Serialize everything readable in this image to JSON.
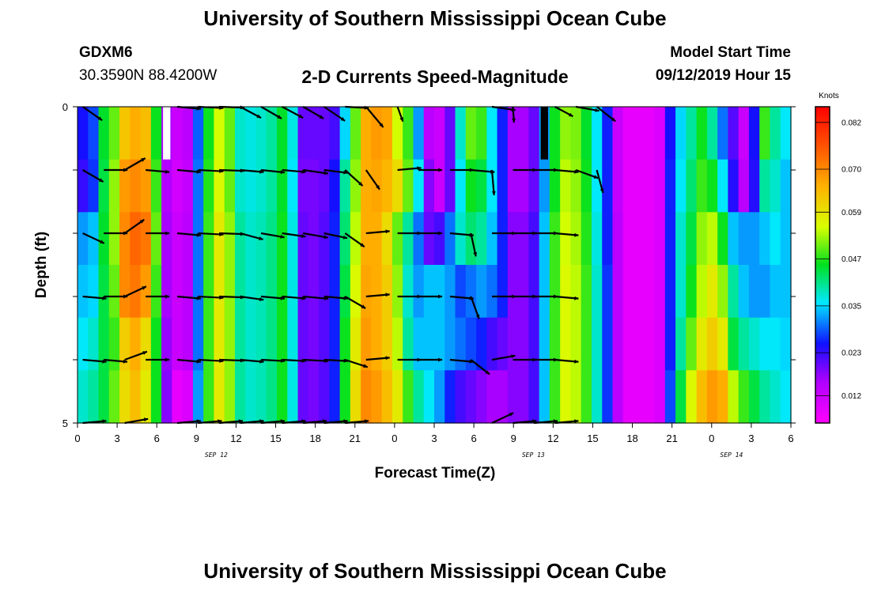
{
  "header": {
    "title": "University of Southern Mississippi Ocean Cube",
    "station_id": "GDXM6",
    "station_coords": "30.3590N 88.4200W",
    "chart_title": "2-D Currents Speed-Magnitude",
    "model_start_label": "Model Start Time",
    "model_start_value": "09/12/2019 Hour 15"
  },
  "footer": {
    "title": "University of Southern Mississippi Ocean Cube"
  },
  "chart_data": {
    "type": "heatmap",
    "title": "2-D Currents Speed-Magnitude",
    "xlabel": "Forecast Time(Z)",
    "ylabel": "Depth (ft)",
    "x_tick_labels": [
      "0",
      "3",
      "6",
      "9",
      "12",
      "15",
      "18",
      "21",
      "0",
      "3",
      "6",
      "9",
      "12",
      "15",
      "18",
      "21",
      "0",
      "3",
      "6"
    ],
    "y_tick_labels": [
      "0",
      "5"
    ],
    "ylim": [
      0,
      5
    ],
    "date_labels": [
      {
        "label": "SEP 12",
        "tick_index": 3.5
      },
      {
        "label": "SEP 13",
        "tick_index": 11.5
      },
      {
        "label": "SEP 14",
        "tick_index": 16.5
      }
    ],
    "colorbar": {
      "unit": "Knots",
      "labels": [
        "0.082",
        "0.070",
        "0.059",
        "0.047",
        "0.035",
        "0.023",
        "0.012"
      ],
      "range": [
        0.005,
        0.086
      ]
    },
    "columns_per_hour": 0.6667,
    "speed_bands": [
      [
        0.025,
        0.028,
        0.045,
        0.05,
        0.063,
        0.066,
        0.064,
        0.046,
        0.016,
        0.012,
        0.014,
        0.029,
        0.046,
        0.055,
        0.05,
        0.038,
        0.037,
        0.038,
        0.04,
        0.045,
        0.037,
        0.02,
        0.02,
        0.02,
        0.022,
        0.035,
        0.05,
        0.066,
        0.068,
        0.067,
        0.055,
        0.048,
        0.032,
        0.014,
        0.012,
        0.02,
        0.038,
        0.05,
        0.048,
        0.036,
        0.026,
        0.016,
        0.016,
        0.02,
        0.032,
        0.046,
        0.052,
        0.051,
        0.045,
        0.036,
        0.026,
        0.012,
        0.008,
        0.008,
        0.008,
        0.01,
        0.025,
        0.035,
        0.04,
        0.046,
        0.04,
        0.03,
        0.021,
        0.012,
        0.025,
        0.048,
        0.04,
        0.036
      ],
      [
        0.023,
        0.027,
        0.044,
        0.052,
        0.068,
        0.07,
        0.068,
        0.048,
        0.015,
        0.011,
        0.013,
        0.03,
        0.047,
        0.056,
        0.05,
        0.038,
        0.037,
        0.038,
        0.04,
        0.045,
        0.036,
        0.019,
        0.019,
        0.02,
        0.025,
        0.04,
        0.052,
        0.066,
        0.067,
        0.065,
        0.06,
        0.05,
        0.036,
        0.018,
        0.012,
        0.02,
        0.036,
        0.046,
        0.044,
        0.036,
        0.026,
        0.016,
        0.016,
        0.02,
        0.032,
        0.046,
        0.054,
        0.052,
        0.046,
        0.036,
        0.026,
        0.013,
        0.008,
        0.008,
        0.008,
        0.01,
        0.026,
        0.036,
        0.042,
        0.048,
        0.046,
        0.036,
        0.024,
        0.014,
        0.024,
        0.04,
        0.038,
        0.034
      ],
      [
        0.032,
        0.034,
        0.045,
        0.052,
        0.07,
        0.074,
        0.072,
        0.05,
        0.016,
        0.012,
        0.014,
        0.03,
        0.048,
        0.058,
        0.052,
        0.04,
        0.038,
        0.039,
        0.041,
        0.046,
        0.037,
        0.02,
        0.019,
        0.021,
        0.026,
        0.042,
        0.054,
        0.066,
        0.066,
        0.06,
        0.05,
        0.04,
        0.03,
        0.02,
        0.022,
        0.03,
        0.038,
        0.042,
        0.04,
        0.034,
        0.026,
        0.018,
        0.018,
        0.022,
        0.034,
        0.048,
        0.055,
        0.053,
        0.047,
        0.037,
        0.026,
        0.014,
        0.008,
        0.008,
        0.008,
        0.01,
        0.026,
        0.038,
        0.044,
        0.052,
        0.054,
        0.046,
        0.034,
        0.032,
        0.032,
        0.034,
        0.036,
        0.034
      ],
      [
        0.034,
        0.035,
        0.044,
        0.05,
        0.07,
        0.072,
        0.068,
        0.048,
        0.016,
        0.012,
        0.014,
        0.03,
        0.048,
        0.058,
        0.052,
        0.04,
        0.038,
        0.039,
        0.041,
        0.046,
        0.037,
        0.02,
        0.019,
        0.021,
        0.026,
        0.044,
        0.056,
        0.067,
        0.066,
        0.062,
        0.052,
        0.038,
        0.032,
        0.034,
        0.034,
        0.032,
        0.028,
        0.03,
        0.032,
        0.03,
        0.026,
        0.018,
        0.018,
        0.022,
        0.034,
        0.048,
        0.056,
        0.054,
        0.048,
        0.038,
        0.027,
        0.014,
        0.008,
        0.008,
        0.008,
        0.01,
        0.026,
        0.038,
        0.046,
        0.054,
        0.058,
        0.052,
        0.04,
        0.034,
        0.032,
        0.032,
        0.034,
        0.034
      ],
      [
        0.036,
        0.038,
        0.044,
        0.048,
        0.062,
        0.066,
        0.06,
        0.046,
        0.017,
        0.012,
        0.014,
        0.03,
        0.048,
        0.058,
        0.052,
        0.04,
        0.038,
        0.039,
        0.041,
        0.046,
        0.037,
        0.02,
        0.019,
        0.021,
        0.026,
        0.046,
        0.058,
        0.068,
        0.066,
        0.062,
        0.054,
        0.04,
        0.034,
        0.034,
        0.034,
        0.032,
        0.03,
        0.028,
        0.026,
        0.022,
        0.02,
        0.018,
        0.018,
        0.022,
        0.034,
        0.048,
        0.056,
        0.054,
        0.048,
        0.038,
        0.027,
        0.014,
        0.008,
        0.008,
        0.008,
        0.01,
        0.026,
        0.04,
        0.05,
        0.058,
        0.062,
        0.058,
        0.044,
        0.04,
        0.038,
        0.036,
        0.036,
        0.035
      ],
      [
        0.038,
        0.04,
        0.044,
        0.05,
        0.06,
        0.064,
        0.058,
        0.046,
        0.018,
        0.008,
        0.01,
        0.032,
        0.048,
        0.058,
        0.052,
        0.04,
        0.038,
        0.039,
        0.041,
        0.046,
        0.037,
        0.02,
        0.019,
        0.021,
        0.026,
        0.046,
        0.06,
        0.07,
        0.068,
        0.064,
        0.058,
        0.048,
        0.04,
        0.036,
        0.032,
        0.026,
        0.022,
        0.02,
        0.018,
        0.016,
        0.016,
        0.018,
        0.018,
        0.022,
        0.034,
        0.048,
        0.056,
        0.054,
        0.048,
        0.038,
        0.027,
        0.014,
        0.008,
        0.008,
        0.008,
        0.01,
        0.028,
        0.044,
        0.056,
        0.064,
        0.068,
        0.066,
        0.054,
        0.048,
        0.044,
        0.04,
        0.038,
        0.036
      ]
    ],
    "missing_cells": [
      {
        "band": 0,
        "col": 8,
        "color": "#ffffff"
      },
      {
        "band": 0,
        "col": 44,
        "color": "#000000"
      }
    ],
    "vector_columns": [
      0,
      2,
      4,
      6,
      9,
      11,
      13,
      15,
      17,
      19,
      21,
      23,
      25,
      27,
      30,
      32,
      35,
      37,
      39,
      41,
      43,
      45,
      47,
      49
    ],
    "vectors": [
      [
        [
          0.03,
          -35
        ],
        [
          0,
          0
        ],
        [
          0,
          0
        ],
        [
          0,
          0
        ],
        [
          0.03,
          -5
        ],
        [
          0.032,
          -3
        ],
        [
          0.032,
          -2
        ],
        [
          0.03,
          -28
        ],
        [
          0.03,
          -30
        ],
        [
          0.03,
          -28
        ],
        [
          0.03,
          -30
        ],
        [
          0.032,
          -34
        ],
        [
          0.03,
          -3
        ],
        [
          0.034,
          -50
        ],
        [
          0.02,
          -70
        ],
        [
          0,
          0
        ],
        [
          0,
          0
        ],
        [
          0,
          0
        ],
        [
          0.03,
          -8
        ],
        [
          0.02,
          -86
        ],
        [
          0,
          0
        ],
        [
          0.026,
          -28
        ],
        [
          0.03,
          -10
        ],
        [
          0.03,
          -38
        ]
      ],
      [
        [
          0.03,
          -30
        ],
        [
          0.03,
          0
        ],
        [
          0.03,
          30
        ],
        [
          0.03,
          -5
        ],
        [
          0.03,
          -5
        ],
        [
          0.032,
          -3
        ],
        [
          0.032,
          -2
        ],
        [
          0.03,
          -5
        ],
        [
          0.03,
          -6
        ],
        [
          0.03,
          -5
        ],
        [
          0.032,
          -8
        ],
        [
          0.03,
          -7
        ],
        [
          0.03,
          -42
        ],
        [
          0.03,
          -55
        ],
        [
          0.03,
          5
        ],
        [
          0.03,
          0
        ],
        [
          0.03,
          0
        ],
        [
          0.03,
          -5
        ],
        [
          0.032,
          -85
        ],
        [
          0.03,
          0
        ],
        [
          0.03,
          0
        ],
        [
          0.03,
          -5
        ],
        [
          0.03,
          -20
        ],
        [
          0.03,
          -75
        ]
      ],
      [
        [
          0.03,
          -25
        ],
        [
          0.03,
          0
        ],
        [
          0.03,
          35
        ],
        [
          0.03,
          0
        ],
        [
          0.03,
          -5
        ],
        [
          0.032,
          -3
        ],
        [
          0.032,
          -2
        ],
        [
          0.03,
          -15
        ],
        [
          0.03,
          -10
        ],
        [
          0.03,
          -8
        ],
        [
          0.032,
          -10
        ],
        [
          0.03,
          -12
        ],
        [
          0.03,
          -35
        ],
        [
          0.03,
          5
        ],
        [
          0.03,
          0
        ],
        [
          0.03,
          0
        ],
        [
          0.03,
          -5
        ],
        [
          0.03,
          -78
        ],
        [
          0.03,
          0
        ],
        [
          0.03,
          0
        ],
        [
          0.03,
          0
        ],
        [
          0.03,
          -5
        ],
        [
          0,
          0
        ],
        [
          0,
          0
        ]
      ],
      [
        [
          0.03,
          -5
        ],
        [
          0.03,
          0
        ],
        [
          0.03,
          25
        ],
        [
          0.03,
          0
        ],
        [
          0.03,
          -5
        ],
        [
          0.032,
          -3
        ],
        [
          0.032,
          -2
        ],
        [
          0.03,
          -8
        ],
        [
          0.03,
          -5
        ],
        [
          0.03,
          -5
        ],
        [
          0.032,
          -5
        ],
        [
          0.03,
          -5
        ],
        [
          0.03,
          -30
        ],
        [
          0.03,
          5
        ],
        [
          0.03,
          0
        ],
        [
          0.03,
          0
        ],
        [
          0.03,
          -5
        ],
        [
          0.03,
          -70
        ],
        [
          0.03,
          0
        ],
        [
          0.03,
          0
        ],
        [
          0.03,
          0
        ],
        [
          0.03,
          -5
        ],
        [
          0,
          0
        ],
        [
          0,
          0
        ]
      ],
      [
        [
          0.03,
          -5
        ],
        [
          0.03,
          -5
        ],
        [
          0.03,
          20
        ],
        [
          0.03,
          0
        ],
        [
          0.03,
          -5
        ],
        [
          0.032,
          -3
        ],
        [
          0.032,
          -2
        ],
        [
          0.03,
          -5
        ],
        [
          0.03,
          -3
        ],
        [
          0.03,
          -3
        ],
        [
          0.032,
          -3
        ],
        [
          0.03,
          -3
        ],
        [
          0.03,
          -18
        ],
        [
          0.03,
          5
        ],
        [
          0.03,
          0
        ],
        [
          0.03,
          0
        ],
        [
          0.03,
          -5
        ],
        [
          0.03,
          -38
        ],
        [
          0.03,
          10
        ],
        [
          0.03,
          0
        ],
        [
          0.03,
          0
        ],
        [
          0.03,
          -5
        ],
        [
          0,
          0
        ],
        [
          0,
          0
        ]
      ],
      [
        [
          0.03,
          5
        ],
        [
          0,
          0
        ],
        [
          0.03,
          10
        ],
        [
          0,
          0
        ],
        [
          0.03,
          5
        ],
        [
          0.03,
          5
        ],
        [
          0.03,
          5
        ],
        [
          0.03,
          5
        ],
        [
          0.03,
          5
        ],
        [
          0.03,
          5
        ],
        [
          0.03,
          5
        ],
        [
          0.03,
          5
        ],
        [
          0.03,
          5
        ],
        [
          0,
          0
        ],
        [
          0,
          0
        ],
        [
          0,
          0
        ],
        [
          0,
          0
        ],
        [
          0,
          0
        ],
        [
          0.03,
          25
        ],
        [
          0.03,
          5
        ],
        [
          0.03,
          5
        ],
        [
          0.03,
          5
        ],
        [
          0,
          0
        ],
        [
          0,
          0
        ]
      ]
    ]
  }
}
